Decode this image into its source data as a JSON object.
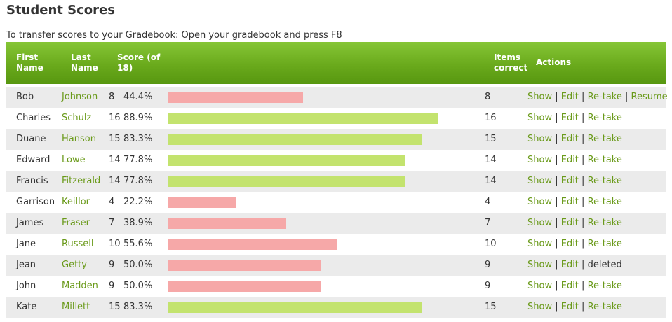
{
  "page": {
    "title": "Student Scores",
    "instructions": "To transfer scores to your Gradebook: Open your gradebook and press F8"
  },
  "table": {
    "headers": {
      "first_name": [
        "First",
        "Name"
      ],
      "last_name": [
        "Last",
        "Name"
      ],
      "score": [
        "Score (of",
        "18)"
      ],
      "items_correct": [
        "Items",
        "correct"
      ],
      "actions": "Actions"
    },
    "max_score": 18,
    "pass_color": "#c3e36e",
    "fail_color": "#f6a8a8",
    "header_color": "#6aaa1c",
    "link_color": "#6a9a1a",
    "rows": [
      {
        "first": "Bob",
        "last": "Johnson",
        "score": "8",
        "percent": "44.4%",
        "fraction": 0.444,
        "pass": false,
        "items": "8",
        "actions": [
          "Show",
          "Edit",
          "Re-take",
          "Resume"
        ]
      },
      {
        "first": "Charles",
        "last": "Schulz",
        "score": "16",
        "percent": "88.9%",
        "fraction": 0.889,
        "pass": true,
        "items": "16",
        "actions": [
          "Show",
          "Edit",
          "Re-take"
        ]
      },
      {
        "first": "Duane",
        "last": "Hanson",
        "score": "15",
        "percent": "83.3%",
        "fraction": 0.833,
        "pass": true,
        "items": "15",
        "actions": [
          "Show",
          "Edit",
          "Re-take"
        ]
      },
      {
        "first": "Edward",
        "last": "Lowe",
        "score": "14",
        "percent": "77.8%",
        "fraction": 0.778,
        "pass": true,
        "items": "14",
        "actions": [
          "Show",
          "Edit",
          "Re-take"
        ]
      },
      {
        "first": "Francis",
        "last": "Fitzerald",
        "score": "14",
        "percent": "77.8%",
        "fraction": 0.778,
        "pass": true,
        "items": "14",
        "actions": [
          "Show",
          "Edit",
          "Re-take"
        ]
      },
      {
        "first": "Garrison",
        "last": "Keillor",
        "score": "4",
        "percent": "22.2%",
        "fraction": 0.222,
        "pass": false,
        "items": "4",
        "actions": [
          "Show",
          "Edit",
          "Re-take"
        ]
      },
      {
        "first": "James",
        "last": "Fraser",
        "score": "7",
        "percent": "38.9%",
        "fraction": 0.389,
        "pass": false,
        "items": "7",
        "actions": [
          "Show",
          "Edit",
          "Re-take"
        ]
      },
      {
        "first": "Jane",
        "last": "Russell",
        "score": "10",
        "percent": "55.6%",
        "fraction": 0.556,
        "pass": false,
        "items": "10",
        "actions": [
          "Show",
          "Edit",
          "Re-take"
        ]
      },
      {
        "first": "Jean",
        "last": "Getty",
        "score": "9",
        "percent": "50.0%",
        "fraction": 0.5,
        "pass": false,
        "items": "9",
        "actions": [
          "Show",
          "Edit"
        ],
        "status": "deleted"
      },
      {
        "first": "John",
        "last": "Madden",
        "score": "9",
        "percent": "50.0%",
        "fraction": 0.5,
        "pass": false,
        "items": "9",
        "actions": [
          "Show",
          "Edit",
          "Re-take"
        ]
      },
      {
        "first": "Kate",
        "last": "Millett",
        "score": "15",
        "percent": "83.3%",
        "fraction": 0.833,
        "pass": true,
        "items": "15",
        "actions": [
          "Show",
          "Edit",
          "Re-take"
        ]
      }
    ]
  }
}
